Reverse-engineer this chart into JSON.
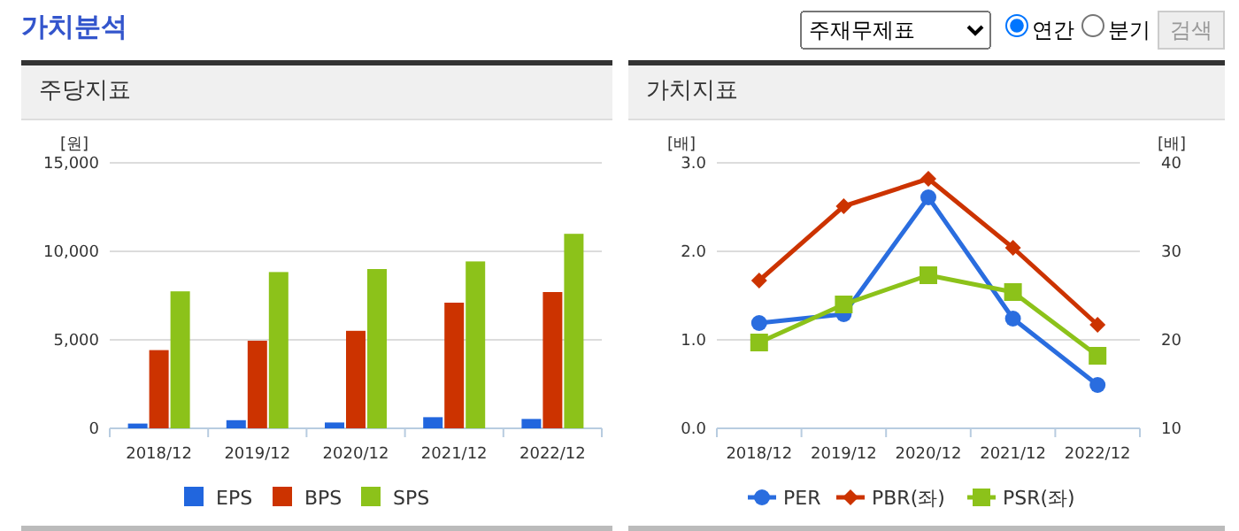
{
  "chart_data": [
    {
      "type": "bar",
      "title": "주당지표",
      "ylabel": "[원]",
      "annotations": [
        "가치분석"
      ],
      "categories": [
        "2018/12",
        "2019/12",
        "2020/12",
        "2021/12",
        "2022/12"
      ],
      "series": [
        {
          "name": "EPS",
          "color": "#2166de",
          "values": [
            270,
            460,
            330,
            630,
            530
          ]
        },
        {
          "name": "BPS",
          "color": "#cc3300",
          "values": [
            4420,
            4950,
            5510,
            7100,
            7700
          ]
        },
        {
          "name": "SPS",
          "color": "#8cc21a",
          "values": [
            7740,
            8830,
            9000,
            9430,
            10990
          ]
        }
      ],
      "ylim": [
        0,
        15000
      ],
      "yticks": [
        {
          "value": 0,
          "label": "0"
        },
        {
          "value": 5000,
          "label": "5,000"
        },
        {
          "value": 10000,
          "label": "10,000"
        },
        {
          "value": 15000,
          "label": "15,000"
        }
      ],
      "grid": "y",
      "legend": "bottom"
    },
    {
      "type": "line",
      "title": "가치지표",
      "ylabel": "[배]",
      "y2label": "[배]",
      "annotations": [
        "주재무제표",
        "연간",
        "분기",
        "검색"
      ],
      "categories": [
        "2018/12",
        "2019/12",
        "2020/12",
        "2021/12",
        "2022/12"
      ],
      "series": [
        {
          "name": "PER",
          "color": "#2a6ddf",
          "marker": "circle",
          "axis": "y2",
          "values": [
            21.9,
            22.9,
            36.1,
            22.4,
            14.9
          ]
        },
        {
          "name": "PBR(좌)",
          "color": "#cc3300",
          "marker": "diamond",
          "values": [
            1.67,
            2.51,
            2.82,
            2.04,
            1.17
          ]
        },
        {
          "name": "PSR(좌)",
          "color": "#8cc21a",
          "marker": "square",
          "values": [
            0.97,
            1.4,
            1.73,
            1.54,
            0.82
          ]
        }
      ],
      "ylim": [
        0,
        3
      ],
      "yticks": [
        {
          "value": 0,
          "label": "0.0"
        },
        {
          "value": 1,
          "label": "1.0"
        },
        {
          "value": 2,
          "label": "2.0"
        },
        {
          "value": 3,
          "label": "3.0"
        }
      ],
      "y2lim": [
        10,
        40
      ],
      "y2ticks": [
        10,
        20,
        30,
        40
      ],
      "grid": "y",
      "legend": "bottom"
    }
  ]
}
